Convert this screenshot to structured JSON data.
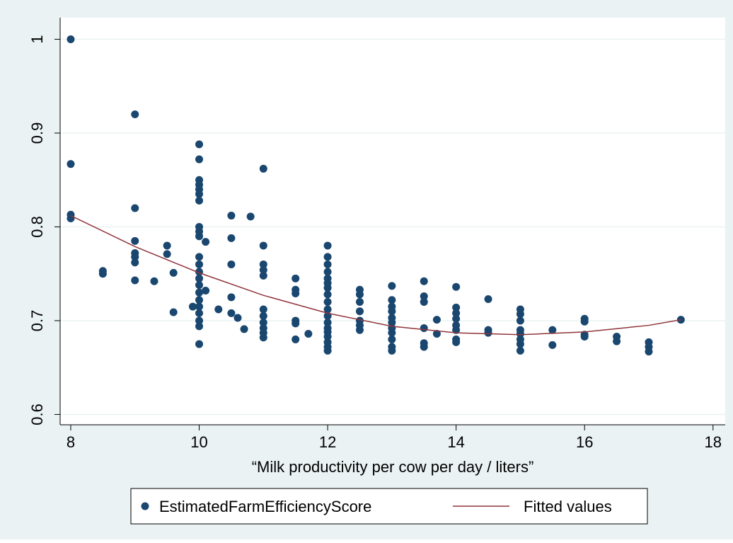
{
  "chart_data": {
    "type": "scatter",
    "x_label": "“Milk productivity per cow per day / liters”",
    "xlim": [
      7.835,
      18.19
    ],
    "ylim": [
      0.589,
      1.023
    ],
    "xticks": [
      8,
      10,
      12,
      14,
      16,
      18
    ],
    "yticks": [
      0.6,
      0.7,
      0.8,
      0.9,
      1
    ],
    "grid": true,
    "legend": "bottom",
    "series": [
      {
        "name": "EstimatedFarmEfficiencyScore",
        "type": "scatter",
        "color": "#1a476f",
        "x": [
          8,
          8,
          8,
          8,
          8.5,
          8.5,
          9,
          9,
          9,
          9,
          9,
          9,
          9,
          9.3,
          9.5,
          9.5,
          9.6,
          9.6,
          9.9,
          10,
          10,
          10,
          10,
          10,
          10,
          10,
          10,
          10,
          10,
          10,
          10,
          10,
          10,
          10,
          10,
          10,
          10,
          10,
          10,
          10,
          10,
          10.1,
          10.1,
          10.3,
          10.5,
          10.5,
          10.5,
          10.5,
          10.5,
          10.6,
          10.7,
          10.8,
          11,
          11,
          11,
          11,
          11,
          11,
          11,
          11,
          11,
          11,
          11,
          11.5,
          11.5,
          11.5,
          11.5,
          11.5,
          11.5,
          11.7,
          12,
          12,
          12,
          12,
          12,
          12,
          12,
          12,
          12,
          12,
          12,
          12,
          12,
          12,
          12,
          12,
          12,
          12,
          12.5,
          12.5,
          12.5,
          12.5,
          12.5,
          12.5,
          12.5,
          13,
          13,
          13,
          13,
          13,
          13,
          13,
          13,
          13,
          13,
          13,
          13.5,
          13.5,
          13.5,
          13.5,
          13.5,
          13.5,
          13.7,
          13.7,
          14,
          14,
          14,
          14,
          14,
          14,
          14,
          14,
          14.5,
          14.5,
          14.5,
          15,
          15,
          15,
          15,
          15,
          15,
          15,
          15,
          15.5,
          15.5,
          16,
          16,
          16,
          16,
          16.5,
          16.5,
          17,
          17,
          17,
          17.5
        ],
        "values": [
          1.0,
          0.867,
          0.813,
          0.809,
          0.753,
          0.75,
          0.92,
          0.82,
          0.785,
          0.772,
          0.768,
          0.762,
          0.743,
          0.742,
          0.78,
          0.771,
          0.751,
          0.709,
          0.715,
          0.888,
          0.872,
          0.85,
          0.845,
          0.84,
          0.835,
          0.828,
          0.8,
          0.795,
          0.79,
          0.768,
          0.76,
          0.752,
          0.745,
          0.738,
          0.73,
          0.722,
          0.715,
          0.708,
          0.7,
          0.694,
          0.675,
          0.784,
          0.732,
          0.712,
          0.812,
          0.788,
          0.76,
          0.725,
          0.708,
          0.703,
          0.691,
          0.811,
          0.862,
          0.78,
          0.76,
          0.754,
          0.748,
          0.712,
          0.705,
          0.698,
          0.692,
          0.687,
          0.682,
          0.745,
          0.733,
          0.729,
          0.7,
          0.697,
          0.68,
          0.686,
          0.78,
          0.768,
          0.76,
          0.752,
          0.745,
          0.74,
          0.735,
          0.728,
          0.72,
          0.712,
          0.705,
          0.698,
          0.692,
          0.688,
          0.683,
          0.677,
          0.672,
          0.668,
          0.733,
          0.728,
          0.72,
          0.71,
          0.7,
          0.695,
          0.69,
          0.737,
          0.722,
          0.715,
          0.71,
          0.703,
          0.698,
          0.692,
          0.687,
          0.68,
          0.672,
          0.668,
          0.742,
          0.726,
          0.72,
          0.692,
          0.676,
          0.672,
          0.701,
          0.686,
          0.736,
          0.714,
          0.708,
          0.702,
          0.695,
          0.69,
          0.68,
          0.677,
          0.723,
          0.69,
          0.687,
          0.712,
          0.707,
          0.7,
          0.69,
          0.686,
          0.68,
          0.675,
          0.668,
          0.69,
          0.674,
          0.702,
          0.699,
          0.685,
          0.683,
          0.683,
          0.678,
          0.677,
          0.672,
          0.667,
          0.701
        ]
      },
      {
        "name": "Fitted values",
        "type": "line",
        "color": "#90353b",
        "x": [
          8,
          9,
          10,
          11,
          12,
          13,
          14,
          15,
          16,
          17,
          17.5
        ],
        "values": [
          0.812,
          0.779,
          0.751,
          0.727,
          0.708,
          0.694,
          0.687,
          0.685,
          0.688,
          0.695,
          0.701
        ]
      }
    ]
  }
}
